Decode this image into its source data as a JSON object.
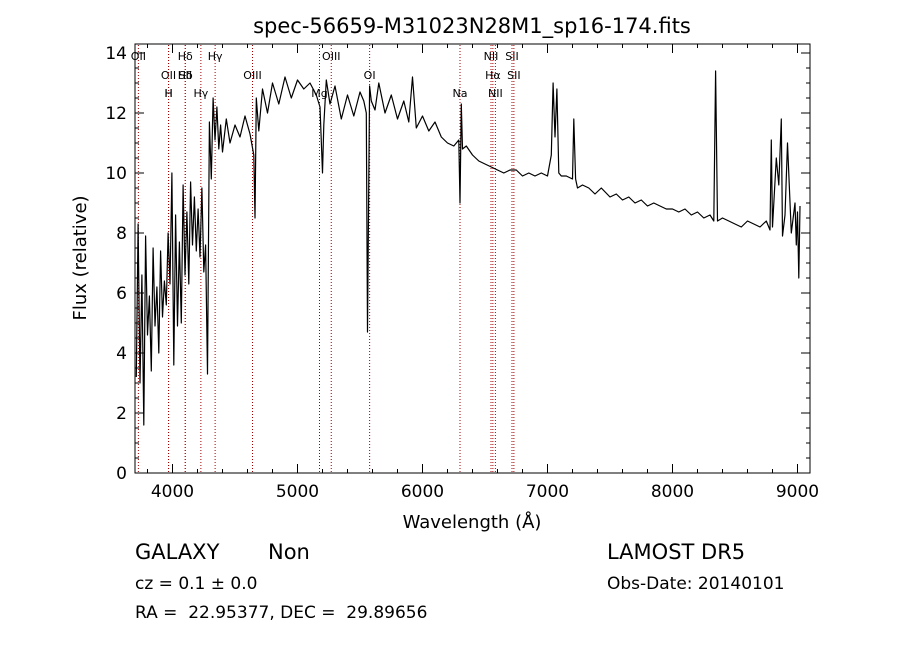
{
  "chart_data": {
    "type": "line",
    "title": "spec-56659-M31023N28M1_sp16-174.fits",
    "xlabel": "Wavelength (Å)",
    "ylabel": "Flux (relative)",
    "xlim": [
      3700,
      9100
    ],
    "ylim": [
      0,
      14.3
    ],
    "xticks": [
      {
        "value": 4000,
        "label": "4000"
      },
      {
        "value": 5000,
        "label": "5000"
      },
      {
        "value": 6000,
        "label": "6000"
      },
      {
        "value": 7000,
        "label": "7000"
      },
      {
        "value": 8000,
        "label": "8000"
      },
      {
        "value": 9000,
        "label": "9000"
      }
    ],
    "yticks": [
      {
        "value": 0,
        "label": "0"
      },
      {
        "value": 2,
        "label": "2"
      },
      {
        "value": 4,
        "label": "4"
      },
      {
        "value": 6,
        "label": "6"
      },
      {
        "value": 8,
        "label": "8"
      },
      {
        "value": 10,
        "label": "10"
      },
      {
        "value": 12,
        "label": "12"
      },
      {
        "value": 14,
        "label": "14"
      }
    ],
    "grid": false,
    "series": [
      {
        "color": "#000000",
        "x": [
          3710,
          3725,
          3740,
          3755,
          3770,
          3785,
          3800,
          3815,
          3830,
          3845,
          3860,
          3875,
          3890,
          3905,
          3920,
          3935,
          3950,
          3965,
          3980,
          3995,
          4010,
          4025,
          4040,
          4055,
          4070,
          4085,
          4100,
          4115,
          4130,
          4145,
          4160,
          4175,
          4190,
          4205,
          4220,
          4235,
          4250,
          4265,
          4280,
          4295,
          4310,
          4325,
          4340,
          4355,
          4370,
          4385,
          4400,
          4430,
          4460,
          4500,
          4540,
          4580,
          4620,
          4650,
          4660,
          4670,
          4690,
          4720,
          4760,
          4800,
          4850,
          4900,
          4950,
          5000,
          5050,
          5100,
          5150,
          5180,
          5200,
          5210,
          5230,
          5260,
          5300,
          5350,
          5400,
          5450,
          5500,
          5530,
          5550,
          5560,
          5577,
          5590,
          5620,
          5650,
          5700,
          5750,
          5800,
          5850,
          5890,
          5920,
          5950,
          6000,
          6050,
          6100,
          6150,
          6200,
          6250,
          6290,
          6300,
          6310,
          6320,
          6350,
          6400,
          6450,
          6500,
          6550,
          6600,
          6650,
          6700,
          6750,
          6800,
          6850,
          6900,
          6950,
          7000,
          7030,
          7045,
          7060,
          7075,
          7090,
          7110,
          7150,
          7200,
          7210,
          7225,
          7240,
          7280,
          7330,
          7380,
          7430,
          7500,
          7550,
          7600,
          7650,
          7700,
          7750,
          7800,
          7850,
          7900,
          7950,
          8000,
          8050,
          8100,
          8150,
          8200,
          8250,
          8300,
          8330,
          8345,
          8360,
          8400,
          8450,
          8500,
          8550,
          8600,
          8650,
          8700,
          8750,
          8780,
          8790,
          8800,
          8830,
          8850,
          8870,
          8880,
          8900,
          8920,
          8950,
          8980,
          8990,
          9000,
          9010,
          9020
        ],
        "y": [
          3.2,
          8.3,
          3.0,
          6.6,
          1.6,
          7.9,
          4.6,
          5.9,
          3.4,
          7.5,
          4.9,
          6.2,
          4.0,
          7.4,
          5.2,
          6.4,
          5.6,
          8.0,
          6.3,
          10.0,
          3.6,
          8.6,
          4.9,
          7.7,
          5.0,
          9.6,
          6.6,
          8.7,
          6.3,
          9.7,
          7.6,
          9.2,
          7.4,
          8.8,
          7.2,
          9.5,
          6.7,
          7.6,
          3.3,
          11.7,
          9.8,
          12.5,
          11.1,
          12.2,
          10.8,
          11.6,
          10.7,
          11.8,
          11.0,
          11.6,
          11.2,
          11.9,
          11.3,
          10.6,
          8.5,
          12.5,
          11.4,
          12.8,
          12.0,
          13.0,
          12.3,
          13.2,
          12.5,
          13.1,
          12.8,
          13.0,
          12.6,
          12.2,
          10.0,
          11.6,
          13.1,
          12.3,
          12.9,
          11.8,
          12.6,
          11.9,
          12.7,
          12.4,
          12.0,
          4.7,
          12.9,
          12.4,
          12.1,
          13.0,
          12.0,
          12.6,
          11.8,
          12.4,
          11.7,
          13.2,
          11.5,
          11.9,
          11.4,
          11.7,
          11.2,
          11.0,
          10.9,
          11.1,
          9.0,
          12.3,
          10.8,
          10.9,
          10.6,
          10.4,
          10.3,
          10.2,
          10.1,
          10.0,
          10.1,
          10.1,
          9.9,
          10.0,
          9.9,
          10.0,
          9.9,
          10.6,
          13.0,
          11.2,
          12.8,
          10.0,
          9.9,
          9.9,
          9.8,
          11.8,
          9.8,
          9.5,
          9.6,
          9.5,
          9.3,
          9.5,
          9.2,
          9.3,
          9.1,
          9.2,
          9.0,
          9.1,
          8.9,
          9.0,
          8.9,
          8.8,
          8.8,
          8.7,
          8.8,
          8.6,
          8.7,
          8.5,
          8.6,
          8.4,
          13.4,
          8.4,
          8.5,
          8.4,
          8.3,
          8.2,
          8.4,
          8.3,
          8.2,
          8.4,
          8.1,
          11.1,
          8.2,
          10.5,
          9.6,
          11.8,
          7.9,
          8.6,
          11.0,
          8.0,
          9.0,
          7.6,
          8.7,
          6.5,
          8.9
        ]
      }
    ],
    "line_markers": [
      {
        "x": 3727,
        "labels": [
          "OII"
        ]
      },
      {
        "x": 3968,
        "labels": [
          "OII",
          "H"
        ]
      },
      {
        "x": 3969,
        "labels": [
          "H"
        ]
      },
      {
        "x": 4102,
        "labels": [
          "Hδ",
          "SII"
        ]
      },
      {
        "x": 4102,
        "labels": [
          "Hδ"
        ]
      },
      {
        "x": 4227,
        "labels": [
          "Hγ"
        ]
      },
      {
        "x": 4341,
        "labels": [
          "Hγ"
        ]
      },
      {
        "x": 4640,
        "labels": [
          "OIII"
        ]
      },
      {
        "x": 5176,
        "labels": [
          "Mg"
        ]
      },
      {
        "x": 5270,
        "labels": [
          "OIII"
        ]
      },
      {
        "x": 5577,
        "labels": [
          "OI"
        ]
      },
      {
        "x": 6300,
        "labels": [
          "Na"
        ]
      },
      {
        "x": 6548,
        "labels": [
          "NII"
        ]
      },
      {
        "x": 6563,
        "labels": [
          "Hα"
        ]
      },
      {
        "x": 6583,
        "labels": [
          "NII"
        ]
      },
      {
        "x": 6716,
        "labels": [
          "SII"
        ]
      },
      {
        "x": 6731,
        "labels": [
          "SII"
        ]
      }
    ]
  },
  "info": {
    "object_class": "GALAXY",
    "subclass": "Non",
    "survey": "LAMOST DR5",
    "cz": "cz = 0.1 ± 0.0",
    "obs_date": "Obs-Date: 20140101",
    "coords": "RA =  22.95377, DEC =  29.89656"
  }
}
